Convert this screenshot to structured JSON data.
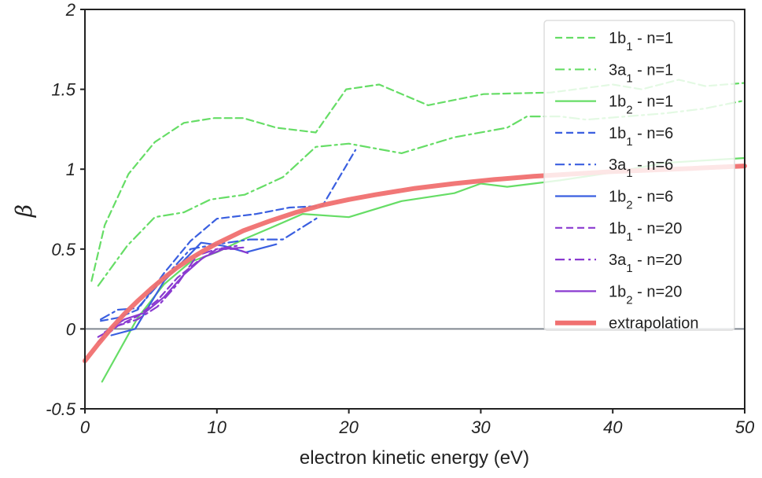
{
  "chart_data": {
    "type": "line",
    "title": "",
    "xlabel": "electron kinetic energy (eV)",
    "ylabel": "β",
    "xlim": [
      0,
      50
    ],
    "ylim": [
      -0.5,
      2
    ],
    "x_ticks": [
      "0",
      "10",
      "20",
      "30",
      "40",
      "50"
    ],
    "y_ticks": [
      "-0.5",
      "0",
      "0.5",
      "1",
      "1.5",
      "2"
    ],
    "zero_line": true,
    "legend_position": "top-right",
    "colors": {
      "n1": "#66dd66",
      "n6": "#3a5fe0",
      "n20": "#8a3ad0",
      "extrapolation": "#f07070",
      "zero_line": "#808890"
    },
    "series": [
      {
        "name": "1b₁ - n=1",
        "orbital": "1b",
        "sub": "1",
        "suffix": " - n=1",
        "group": "n1",
        "dash": "dashed",
        "x": [
          0.5,
          1.5,
          3.3,
          5.3,
          7.5,
          9.8,
          12,
          14.5,
          17.5,
          19.8,
          22.3,
          26,
          30.2,
          35.3,
          40,
          42.2,
          45,
          47,
          50
        ],
        "y": [
          0.3,
          0.65,
          0.97,
          1.17,
          1.29,
          1.32,
          1.32,
          1.26,
          1.23,
          1.5,
          1.53,
          1.4,
          1.47,
          1.48,
          1.53,
          1.5,
          1.56,
          1.52,
          1.54
        ]
      },
      {
        "name": "3a₁ - n=1",
        "orbital": "3a",
        "sub": "1",
        "suffix": " - n=1",
        "group": "n1",
        "dash": "dashdot",
        "x": [
          1,
          3.2,
          5.3,
          7.5,
          9.5,
          12.1,
          15,
          17.5,
          20,
          24,
          28,
          32,
          33.5,
          36,
          38,
          41,
          44,
          47,
          50
        ],
        "y": [
          0.27,
          0.52,
          0.7,
          0.73,
          0.81,
          0.84,
          0.95,
          1.14,
          1.16,
          1.1,
          1.2,
          1.26,
          1.33,
          1.33,
          1.31,
          1.33,
          1.35,
          1.38,
          1.43
        ]
      },
      {
        "name": "1b₂ - n=1",
        "orbital": "1b",
        "sub": "2",
        "suffix": " - n=1",
        "group": "n1",
        "dash": "solid",
        "x": [
          1.3,
          4,
          6,
          8,
          10,
          12,
          14,
          16.5,
          20,
          24,
          28,
          30,
          32,
          36,
          40,
          44,
          50
        ],
        "y": [
          -0.33,
          0.07,
          0.28,
          0.42,
          0.48,
          0.56,
          0.63,
          0.72,
          0.7,
          0.8,
          0.85,
          0.91,
          0.89,
          0.93,
          0.98,
          1.04,
          1.07
        ]
      },
      {
        "name": "1b₁ - n=6",
        "orbital": "1b",
        "sub": "1",
        "suffix": " - n=6",
        "group": "n6",
        "dash": "dashed",
        "x": [
          1.2,
          2.5,
          4,
          6,
          8,
          10,
          13,
          15.5,
          18,
          20.5
        ],
        "y": [
          0.05,
          0.07,
          0.12,
          0.35,
          0.55,
          0.69,
          0.72,
          0.76,
          0.77,
          1.12
        ]
      },
      {
        "name": "3a₁ - n=6",
        "orbital": "3a",
        "sub": "1",
        "suffix": " - n=6",
        "group": "n6",
        "dash": "dashdot",
        "x": [
          1.2,
          2.5,
          4,
          6,
          8,
          10,
          12.5,
          15,
          17.7
        ],
        "y": [
          0.06,
          0.12,
          0.13,
          0.32,
          0.5,
          0.53,
          0.56,
          0.56,
          0.7
        ]
      },
      {
        "name": "1b₂ - n=6",
        "orbital": "1b",
        "sub": "2",
        "suffix": " - n=6",
        "group": "n6",
        "dash": "solid",
        "x": [
          2,
          3.8,
          6,
          8.8,
          10.5,
          12.2,
          14.5
        ],
        "y": [
          -0.04,
          0.0,
          0.3,
          0.54,
          0.52,
          0.48,
          0.53
        ]
      },
      {
        "name": "1b₁ - n=20",
        "orbital": "1b",
        "sub": "1",
        "suffix": " - n=20",
        "group": "n20",
        "dash": "dashed",
        "x": [
          1,
          2.5,
          4,
          5.5,
          7,
          8.5,
          10,
          11.5,
          12.5
        ],
        "y": [
          -0.08,
          0.02,
          0.08,
          0.18,
          0.32,
          0.42,
          0.5,
          0.5,
          0.47
        ]
      },
      {
        "name": "3a₁ - n=20",
        "orbital": "3a",
        "sub": "1",
        "suffix": " - n=20",
        "group": "n20",
        "dash": "dashdot",
        "x": [
          1,
          2.5,
          4,
          5.5,
          7,
          8.5,
          10,
          11.5
        ],
        "y": [
          -0.05,
          0.02,
          0.06,
          0.14,
          0.28,
          0.46,
          0.5,
          0.52
        ]
      },
      {
        "name": "1b₂ - n=20",
        "orbital": "1b",
        "sub": "2",
        "suffix": " - n=20",
        "group": "n20",
        "dash": "solid",
        "x": [
          1.5,
          3,
          4.5,
          6,
          7.5,
          9,
          10.5,
          12
        ],
        "y": [
          -0.02,
          0.06,
          0.1,
          0.2,
          0.34,
          0.45,
          0.5,
          0.51
        ]
      },
      {
        "name": "extrapolation",
        "group": "extrapolation",
        "dash": "thick",
        "x": [
          0,
          1,
          2,
          3,
          4,
          5,
          6,
          7,
          8,
          9,
          10,
          12,
          14,
          16,
          18,
          20,
          22,
          25,
          28,
          31,
          34,
          37,
          40,
          43,
          46,
          50
        ],
        "y": [
          -0.2,
          -0.095,
          0.005,
          0.095,
          0.175,
          0.25,
          0.32,
          0.385,
          0.44,
          0.49,
          0.535,
          0.615,
          0.675,
          0.73,
          0.775,
          0.81,
          0.84,
          0.88,
          0.91,
          0.935,
          0.955,
          0.97,
          0.985,
          0.995,
          1.005,
          1.02
        ]
      }
    ]
  }
}
